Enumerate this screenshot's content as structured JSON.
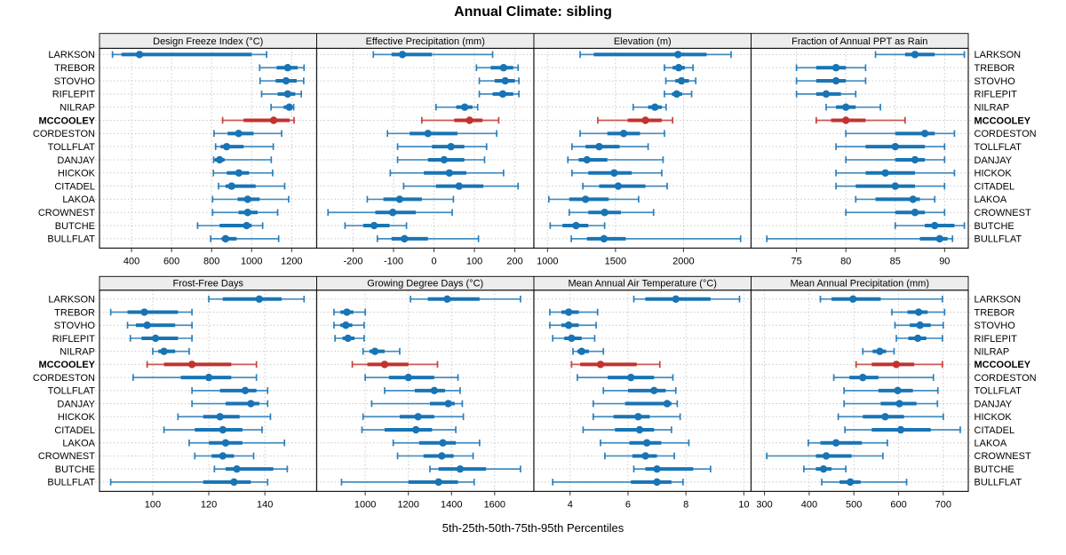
{
  "title": "Annual Climate: sibling",
  "caption": "5th-25th-50th-75th-95th Percentiles",
  "colors": {
    "series": "#1874B5",
    "highlight": "#C1332E",
    "strip_bg": "#EDEDED",
    "strip_border": "#000000",
    "panel_border": "#1A1A1A",
    "grid": "#C9C9C9",
    "tick": "#333333",
    "text": "#000000"
  },
  "stations": [
    "LARKSON",
    "TREBOR",
    "STOVHO",
    "RIFLEPIT",
    "NILRAP",
    "MCCOOLEY",
    "CORDESTON",
    "TOLLFLAT",
    "DANJAY",
    "HICKOK",
    "CITADEL",
    "LAKOA",
    "CROWNEST",
    "BUTCHE",
    "BULLFLAT"
  ],
  "highlight_station": "MCCOOLEY",
  "chart_data": {
    "type": "dotplot-percentiles",
    "percentile_labels": [
      "5th",
      "25th",
      "50th",
      "75th",
      "95th"
    ],
    "grid": "dotted",
    "layout": {
      "rows": 2,
      "cols": 4
    },
    "panels": [
      {
        "title": "Design Freeze Index (°C)",
        "xlim": [
          240,
          1325
        ],
        "ticks": [
          400,
          600,
          800,
          1000,
          1200
        ],
        "series": [
          [
            305,
            350,
            440,
            1000,
            1075
          ],
          [
            1040,
            1125,
            1180,
            1230,
            1262
          ],
          [
            1042,
            1120,
            1172,
            1225,
            1260
          ],
          [
            1050,
            1130,
            1180,
            1218,
            1248
          ],
          [
            1097,
            1160,
            1188,
            1200,
            1210
          ],
          [
            855,
            960,
            1110,
            1190,
            1212
          ],
          [
            812,
            880,
            935,
            1010,
            1150
          ],
          [
            820,
            845,
            875,
            960,
            1108
          ],
          [
            810,
            815,
            840,
            865,
            1098
          ],
          [
            809,
            876,
            936,
            987,
            1105
          ],
          [
            835,
            870,
            900,
            1020,
            1165
          ],
          [
            805,
            930,
            980,
            1040,
            1185
          ],
          [
            805,
            935,
            980,
            1030,
            1130
          ],
          [
            730,
            840,
            975,
            1000,
            1055
          ],
          [
            795,
            850,
            870,
            925,
            1135
          ]
        ]
      },
      {
        "title": "Effective Precipitation (mm)",
        "xlim": [
          -290,
          247
        ],
        "ticks": [
          -200,
          -100,
          0,
          100,
          200
        ],
        "series": [
          [
            -150,
            -105,
            -78,
            -5,
            145
          ],
          [
            105,
            140,
            172,
            196,
            208
          ],
          [
            112,
            150,
            176,
            200,
            210
          ],
          [
            112,
            145,
            170,
            196,
            210
          ],
          [
            5,
            55,
            76,
            95,
            108
          ],
          [
            -30,
            50,
            88,
            120,
            160
          ],
          [
            -115,
            -60,
            -15,
            58,
            155
          ],
          [
            -90,
            -5,
            42,
            75,
            130
          ],
          [
            -90,
            -15,
            25,
            75,
            125
          ],
          [
            -108,
            -25,
            38,
            80,
            172
          ],
          [
            -75,
            5,
            62,
            122,
            208
          ],
          [
            -165,
            -125,
            -85,
            -30,
            48
          ],
          [
            -262,
            -145,
            -102,
            -45,
            45
          ],
          [
            -220,
            -175,
            -148,
            -110,
            -68
          ],
          [
            -140,
            -105,
            -73,
            -15,
            110
          ]
        ]
      },
      {
        "title": "Elevation (m)",
        "xlim": [
          900,
          2497
        ],
        "ticks": [
          1000,
          1500,
          2000
        ],
        "series": [
          [
            1240,
            1340,
            1960,
            2170,
            2350
          ],
          [
            1860,
            1920,
            1965,
            2010,
            2070
          ],
          [
            1870,
            1940,
            1985,
            2040,
            2090
          ],
          [
            1860,
            1915,
            1950,
            1990,
            2060
          ],
          [
            1630,
            1740,
            1790,
            1840,
            1872
          ],
          [
            1370,
            1590,
            1720,
            1840,
            1920
          ],
          [
            1240,
            1440,
            1560,
            1680,
            1860
          ],
          [
            1180,
            1280,
            1380,
            1530,
            1740
          ],
          [
            1150,
            1230,
            1290,
            1440,
            1850
          ],
          [
            1180,
            1300,
            1490,
            1620,
            1840
          ],
          [
            1260,
            1380,
            1520,
            1720,
            1880
          ],
          [
            1010,
            1160,
            1280,
            1450,
            1670
          ],
          [
            1160,
            1300,
            1420,
            1540,
            1780
          ],
          [
            1020,
            1110,
            1210,
            1300,
            1420
          ],
          [
            1175,
            1290,
            1415,
            1575,
            2420
          ]
        ]
      },
      {
        "title": "Fraction of Annual PPT as Rain",
        "xlim": [
          70.4,
          92.4
        ],
        "ticks": [
          75,
          80,
          85,
          90
        ],
        "series": [
          [
            83,
            86,
            87,
            89,
            92
          ],
          [
            75,
            77,
            79,
            80,
            82
          ],
          [
            75,
            77,
            79,
            80,
            82
          ],
          [
            75,
            77,
            78,
            79.5,
            81
          ],
          [
            78,
            79,
            80,
            81,
            83.5
          ],
          [
            77,
            78.5,
            80,
            82,
            86
          ],
          [
            80,
            85,
            88,
            89,
            91
          ],
          [
            79,
            82,
            85,
            88,
            90
          ],
          [
            80,
            85,
            87,
            88,
            90
          ],
          [
            79,
            82,
            84,
            87,
            91
          ],
          [
            79,
            81,
            85,
            87,
            90
          ],
          [
            81,
            83,
            86.8,
            87.5,
            89
          ],
          [
            80,
            85,
            87,
            88,
            90
          ],
          [
            85,
            88,
            89,
            91,
            92
          ],
          [
            72,
            87.5,
            89.5,
            90.3,
            90.8
          ]
        ]
      },
      {
        "title": "Frost-Free Days",
        "xlim": [
          81,
          158.5
        ],
        "ticks": [
          100,
          120,
          140
        ],
        "series": [
          [
            120,
            125,
            138,
            146,
            154
          ],
          [
            85,
            91,
            97,
            109,
            114
          ],
          [
            91,
            94,
            98,
            108,
            114
          ],
          [
            92,
            96,
            101,
            109,
            114
          ],
          [
            100,
            102,
            104,
            108,
            113
          ],
          [
            98,
            104,
            114,
            128,
            137
          ],
          [
            93,
            110,
            120,
            128,
            137
          ],
          [
            114,
            124,
            133,
            137,
            141
          ],
          [
            114,
            126,
            135,
            138,
            141
          ],
          [
            109,
            118,
            124,
            131,
            142
          ],
          [
            104,
            115,
            125,
            132,
            139
          ],
          [
            113,
            120,
            126,
            132,
            147
          ],
          [
            115,
            121,
            125,
            129,
            136
          ],
          [
            122,
            126,
            130,
            143,
            148
          ],
          [
            85,
            118,
            129,
            135,
            141
          ]
        ]
      },
      {
        "title": "Growing Degree Days (°C)",
        "xlim": [
          775,
          1782
        ],
        "ticks": [
          1000,
          1200,
          1400,
          1600
        ],
        "series": [
          [
            1210,
            1290,
            1380,
            1530,
            1720
          ],
          [
            855,
            885,
            915,
            945,
            1000
          ],
          [
            855,
            885,
            910,
            940,
            995
          ],
          [
            860,
            895,
            920,
            950,
            995
          ],
          [
            990,
            1020,
            1045,
            1090,
            1160
          ],
          [
            940,
            1010,
            1090,
            1200,
            1335
          ],
          [
            1000,
            1110,
            1200,
            1320,
            1430
          ],
          [
            1090,
            1230,
            1320,
            1370,
            1440
          ],
          [
            1030,
            1300,
            1385,
            1415,
            1450
          ],
          [
            990,
            1160,
            1245,
            1320,
            1455
          ],
          [
            985,
            1090,
            1235,
            1310,
            1420
          ],
          [
            1130,
            1250,
            1360,
            1420,
            1530
          ],
          [
            1150,
            1270,
            1355,
            1410,
            1500
          ],
          [
            1300,
            1340,
            1440,
            1560,
            1720
          ],
          [
            890,
            1200,
            1340,
            1430,
            1505
          ]
        ]
      },
      {
        "title": "Mean Annual Air Temperature (°C)",
        "xlim": [
          2.75,
          10.25
        ],
        "ticks": [
          4,
          6,
          8,
          10
        ],
        "series": [
          [
            6.2,
            6.6,
            7.65,
            8.85,
            9.85
          ],
          [
            3.3,
            3.7,
            3.95,
            4.3,
            4.95
          ],
          [
            3.3,
            3.7,
            3.95,
            4.3,
            4.9
          ],
          [
            3.4,
            3.8,
            4.05,
            4.4,
            4.85
          ],
          [
            4.1,
            4.25,
            4.4,
            4.65,
            5.15
          ],
          [
            4.05,
            4.35,
            5.05,
            6.3,
            7.1
          ],
          [
            4.25,
            5.3,
            6.1,
            6.9,
            7.55
          ],
          [
            5.15,
            6.0,
            6.9,
            7.3,
            7.65
          ],
          [
            4.8,
            5.9,
            7.35,
            7.5,
            7.7
          ],
          [
            4.8,
            5.5,
            6.35,
            6.75,
            7.8
          ],
          [
            4.45,
            5.55,
            6.4,
            6.9,
            7.5
          ],
          [
            5.05,
            6.05,
            6.65,
            7.15,
            8.1
          ],
          [
            5.2,
            6.15,
            6.6,
            7.0,
            7.6
          ],
          [
            6.2,
            6.6,
            7.0,
            8.25,
            8.85
          ],
          [
            3.4,
            6.1,
            7.0,
            7.5,
            7.9
          ]
        ]
      },
      {
        "title": "Mean Annual Precipitation (mm)",
        "xlim": [
          270,
          756
        ],
        "ticks": [
          300,
          400,
          500,
          600,
          700
        ],
        "series": [
          [
            425,
            450,
            498,
            560,
            698
          ],
          [
            585,
            620,
            645,
            665,
            703
          ],
          [
            592,
            625,
            648,
            672,
            700
          ],
          [
            595,
            622,
            643,
            662,
            698
          ],
          [
            520,
            542,
            558,
            572,
            590
          ],
          [
            505,
            540,
            595,
            635,
            698
          ],
          [
            455,
            490,
            520,
            555,
            678
          ],
          [
            478,
            555,
            598,
            632,
            688
          ],
          [
            478,
            560,
            602,
            640,
            687
          ],
          [
            465,
            520,
            570,
            612,
            700
          ],
          [
            480,
            540,
            605,
            672,
            738
          ],
          [
            398,
            425,
            460,
            518,
            575
          ],
          [
            305,
            415,
            438,
            495,
            565
          ],
          [
            388,
            415,
            432,
            450,
            482
          ],
          [
            428,
            468,
            492,
            515,
            618
          ]
        ]
      }
    ]
  }
}
